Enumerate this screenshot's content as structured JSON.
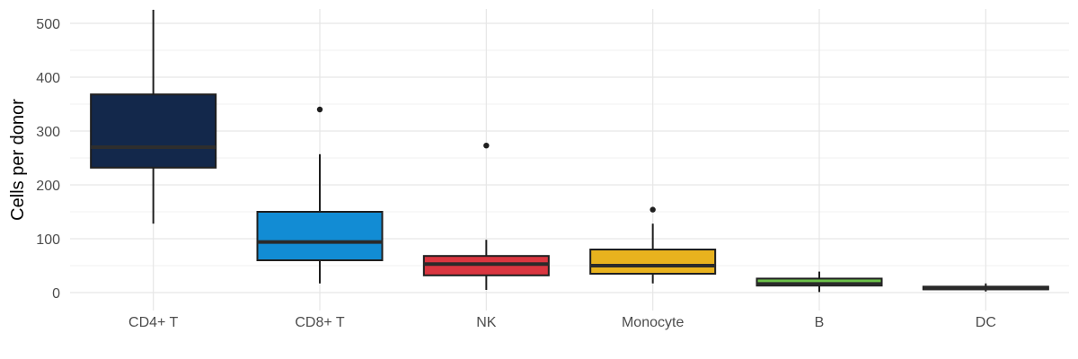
{
  "chart_data": {
    "type": "box",
    "title": "",
    "xlabel": "",
    "ylabel": "Cells per donor",
    "ylim": [
      -25,
      525
    ],
    "yticks": [
      0,
      100,
      200,
      300,
      400,
      500
    ],
    "grid": true,
    "legend": "none",
    "categories": [
      "CD4+ T",
      "CD8+ T",
      "NK",
      "Monocyte",
      "B",
      "DC"
    ],
    "boxes": [
      {
        "category": "CD4+ T",
        "whisker_low": 128,
        "q1": 232,
        "median": 270,
        "q3": 368,
        "whisker_high": 525,
        "outliers": [],
        "fill": "#13284b",
        "median_color": "#2e2e2e"
      },
      {
        "category": "CD8+ T",
        "whisker_low": 17,
        "q1": 60,
        "median": 94,
        "q3": 150,
        "whisker_high": 257,
        "outliers": [
          340
        ],
        "fill": "#128cd4",
        "median_color": "#2a2a2a"
      },
      {
        "category": "NK",
        "whisker_low": 5,
        "q1": 32,
        "median": 53,
        "q3": 68,
        "whisker_high": 98,
        "outliers": [
          273
        ],
        "fill": "#da3640",
        "median_color": "#2a2a2a"
      },
      {
        "category": "Monocyte",
        "whisker_low": 17,
        "q1": 35,
        "median": 50,
        "q3": 80,
        "whisker_high": 128,
        "outliers": [
          154
        ],
        "fill": "#e8b21e",
        "median_color": "#2a2a2a"
      },
      {
        "category": "B",
        "whisker_low": 1,
        "q1": 13,
        "median": 16,
        "q3": 26,
        "whisker_high": 39,
        "outliers": [],
        "fill": "#6cc24a",
        "median_color": "#2a2a2a"
      },
      {
        "category": "DC",
        "whisker_low": 2,
        "q1": 6,
        "median": 8,
        "q3": 11,
        "whisker_high": 17,
        "outliers": [],
        "fill": "#3a3a3a",
        "median_color": "#2a2a2a"
      }
    ]
  }
}
